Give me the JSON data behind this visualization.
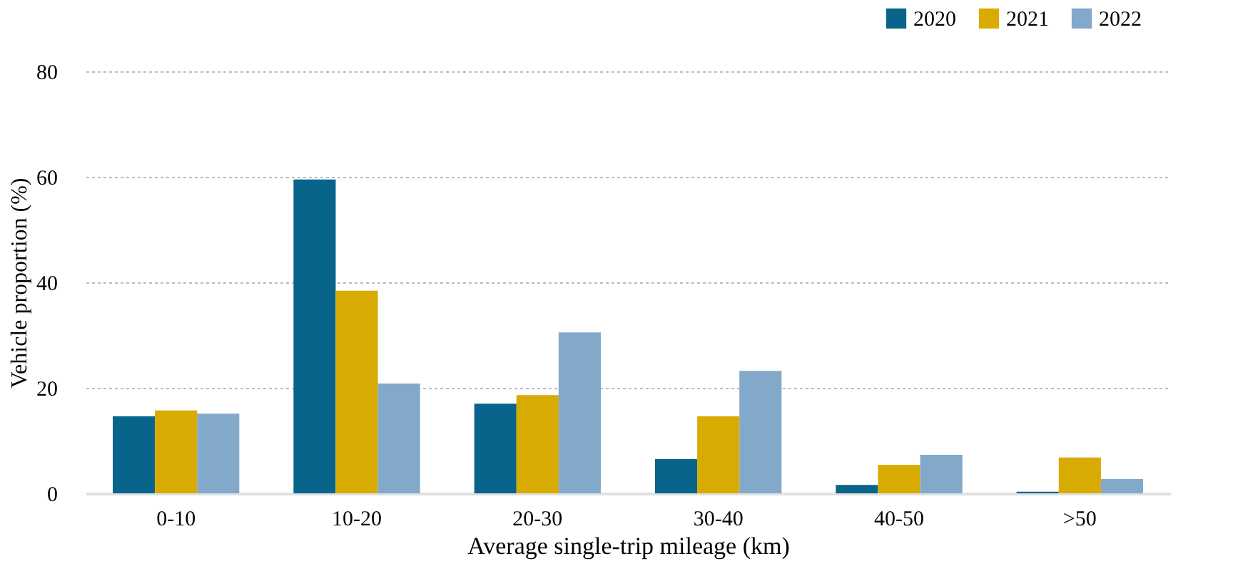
{
  "chart_data": {
    "type": "bar",
    "xlabel": "Average single-trip mileage (km)",
    "ylabel": "Vehicle proportion (%)",
    "categories": [
      "0-10",
      "10-20",
      "20-30",
      "30-40",
      "40-50",
      ">50"
    ],
    "series": [
      {
        "name": "2020",
        "color": "#08648a",
        "values": [
          14.6,
          59.5,
          17.0,
          6.5,
          1.6,
          0.3
        ]
      },
      {
        "name": "2021",
        "color": "#d8ab03",
        "values": [
          15.7,
          38.4,
          18.6,
          14.6,
          5.4,
          6.8
        ]
      },
      {
        "name": "2022",
        "color": "#82a9c9",
        "values": [
          15.1,
          20.8,
          30.5,
          23.2,
          7.3,
          2.7
        ]
      }
    ],
    "ylim": [
      0,
      80
    ],
    "yticks": [
      0,
      20,
      40,
      60,
      80
    ],
    "grid": "y",
    "legend": "top right"
  }
}
